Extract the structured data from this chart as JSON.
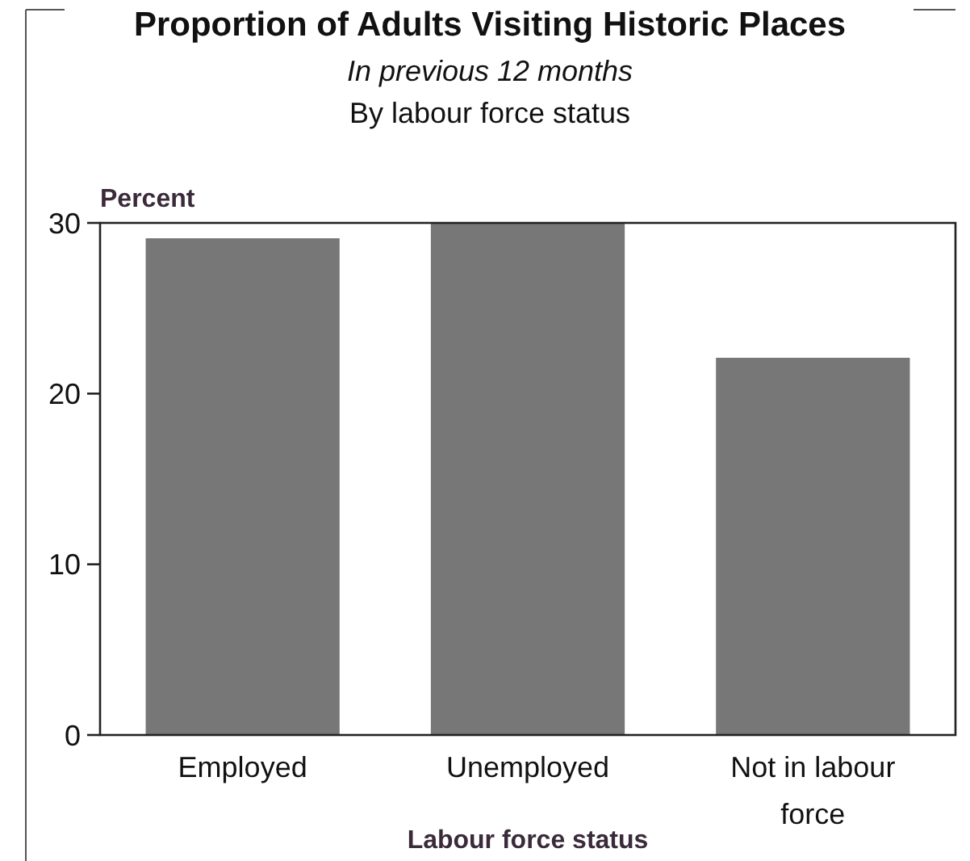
{
  "chart_data": {
    "type": "bar",
    "title": "Proportion of Adults Visiting Historic Places",
    "subtitle": "In previous 12 months",
    "annotations": [
      "By labour force status"
    ],
    "xlabel": "Labour force status",
    "ylabel": "Percent",
    "categories": [
      "Employed",
      "Unemployed",
      "Not in labour force"
    ],
    "values": [
      29.1,
      30.0,
      22.1
    ],
    "color": "#777777",
    "ylim": [
      0,
      30
    ],
    "yticks": [
      0,
      10,
      20,
      30
    ],
    "grid": false
  }
}
